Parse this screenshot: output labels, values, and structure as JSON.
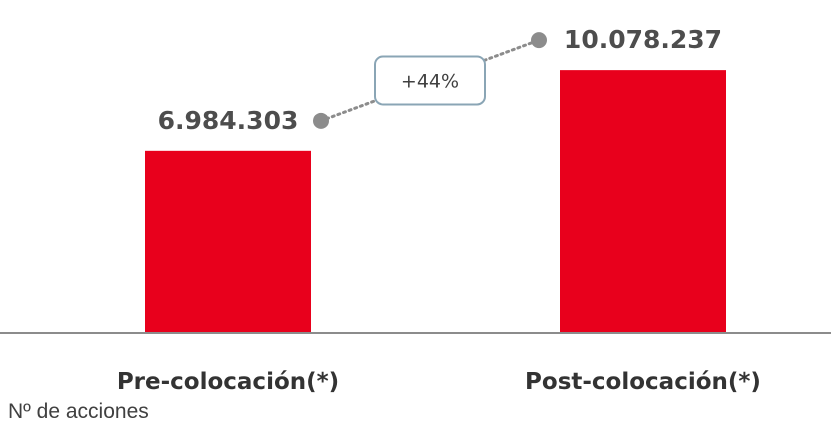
{
  "chart_data": {
    "type": "bar",
    "categories": [
      "Pre-colocación(*)",
      "Post-colocación(*)"
    ],
    "values": [
      6984303,
      10078237
    ],
    "value_labels": [
      "6.984.303",
      "10.078.237"
    ],
    "title": "",
    "xlabel": "",
    "ylabel": "",
    "ylim": [
      0,
      12000000
    ],
    "grid": false,
    "legend": "none",
    "annotations": [
      {
        "text": "+44%",
        "from": "Pre-colocación(*)",
        "to": "Post-colocación(*)"
      }
    ],
    "footnote": "Nº de acciones",
    "colors": {
      "bar": "#e8001c",
      "axis": "#8c8c8c",
      "connector": "#8c8c8c",
      "box_border": "#8aa5b5"
    }
  }
}
